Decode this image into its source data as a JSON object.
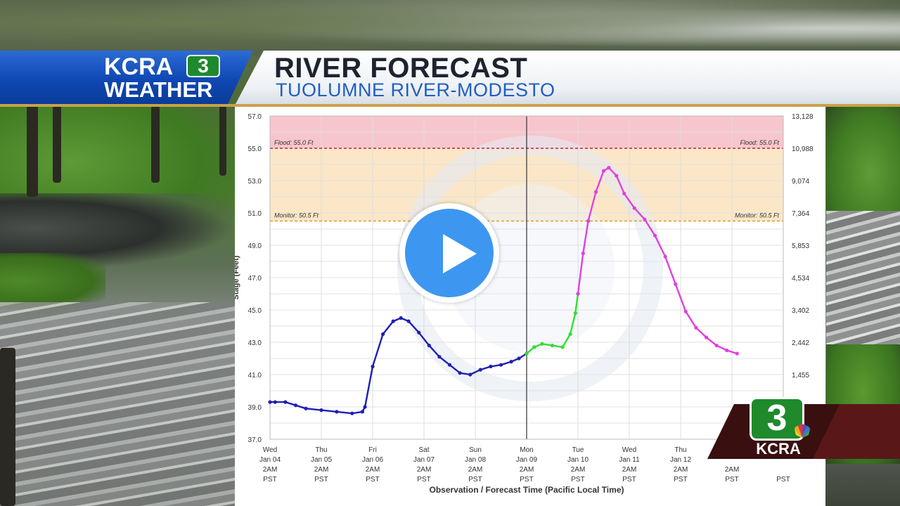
{
  "header": {
    "logo_text_line1": "KCRA",
    "logo_number": "3",
    "logo_text_line2": "WEATHER",
    "title": "RIVER FORECAST",
    "subtitle": "TUOLUMNE RIVER-MODESTO"
  },
  "colors": {
    "brand_blue": "#0f48b3",
    "brand_green": "#1e8a2c",
    "flood_zone": "#f7c6cc",
    "monitor_zone": "#fbe7c8",
    "observed_series": "#1f1fb3",
    "forecast_series_1": "#33dd33",
    "forecast_series_2": "#e040e0",
    "play_button": "#3d97f0"
  },
  "play_button": {
    "icon": "play-icon"
  },
  "bug": {
    "number": "3",
    "text": "KCRA",
    "icon": "peacock-icon"
  },
  "chart_data": {
    "type": "line",
    "ylabel": "Stage (Feet)",
    "xlabel": "Observation / Forecast Time (Pacific Local Time)",
    "ylim": [
      37.0,
      57.0
    ],
    "left_ticks": [
      "57.0",
      "55.0",
      "53.0",
      "51.0",
      "49.0",
      "47.0",
      "45.0",
      "43.0",
      "41.0",
      "39.0",
      "37.0"
    ],
    "right_ticks": [
      "13,128",
      "10,988",
      "9,074",
      "7,364",
      "5,853",
      "4,534",
      "3,402",
      "2,442",
      "1,455"
    ],
    "x_ticks": [
      {
        "day": "Wed",
        "date": "Jan 04",
        "time": "2AM",
        "tz": "PST"
      },
      {
        "day": "Thu",
        "date": "Jan 05",
        "time": "2AM",
        "tz": "PST"
      },
      {
        "day": "Fri",
        "date": "Jan 06",
        "time": "2AM",
        "tz": "PST"
      },
      {
        "day": "Sat",
        "date": "Jan 07",
        "time": "2AM",
        "tz": "PST"
      },
      {
        "day": "Sun",
        "date": "Jan 08",
        "time": "2AM",
        "tz": "PST"
      },
      {
        "day": "Mon",
        "date": "Jan 09",
        "time": "2AM",
        "tz": "PST"
      },
      {
        "day": "Tue",
        "date": "Jan 10",
        "time": "2AM",
        "tz": "PST"
      },
      {
        "day": "Wed",
        "date": "Jan 11",
        "time": "2AM",
        "tz": "PST"
      },
      {
        "day": "Thu",
        "date": "Jan 12",
        "time": "2AM",
        "tz": "PST"
      },
      {
        "day": "",
        "date": "",
        "time": "2AM",
        "tz": "PST"
      },
      {
        "day": "",
        "date": "",
        "time": "",
        "tz": "PST"
      }
    ],
    "thresholds": [
      {
        "label": "Flood: 55.0 Ft",
        "value": 55.0
      },
      {
        "label": "Monitor: 50.5 Ft",
        "value": 50.5
      }
    ],
    "series": [
      {
        "kind": "observed",
        "x": [
          0,
          0.1,
          0.3,
          0.5,
          0.7,
          1.0,
          1.3,
          1.6,
          1.8,
          1.85,
          2.0,
          2.2,
          2.4,
          2.55,
          2.7,
          2.9,
          3.1,
          3.3,
          3.5,
          3.7,
          3.9,
          4.1,
          4.3,
          4.5,
          4.7,
          4.85,
          5.0
        ],
        "y": [
          39.3,
          39.3,
          39.3,
          39.1,
          38.9,
          38.8,
          38.7,
          38.6,
          38.7,
          39.0,
          41.5,
          43.5,
          44.3,
          44.5,
          44.3,
          43.6,
          42.8,
          42.1,
          41.6,
          41.1,
          41.0,
          41.3,
          41.5,
          41.6,
          41.8,
          42.0,
          42.3
        ]
      },
      {
        "kind": "forecast-1",
        "x": [
          5.0,
          5.15,
          5.3,
          5.5,
          5.7,
          5.85,
          5.95,
          6.0
        ],
        "y": [
          42.3,
          42.7,
          42.9,
          42.8,
          42.7,
          43.5,
          44.8,
          46.0
        ]
      },
      {
        "kind": "forecast-2",
        "x": [
          6.0,
          6.1,
          6.2,
          6.35,
          6.5,
          6.6,
          6.75,
          6.9,
          7.1,
          7.3,
          7.5,
          7.7,
          7.9,
          8.1,
          8.3,
          8.5,
          8.7,
          8.9,
          9.1
        ],
        "y": [
          46.0,
          48.5,
          50.5,
          52.3,
          53.6,
          53.8,
          53.3,
          52.2,
          51.3,
          50.6,
          49.6,
          48.3,
          46.6,
          44.9,
          43.9,
          43.3,
          42.8,
          42.5,
          42.3
        ]
      }
    ],
    "legend": "none",
    "grid": true
  }
}
